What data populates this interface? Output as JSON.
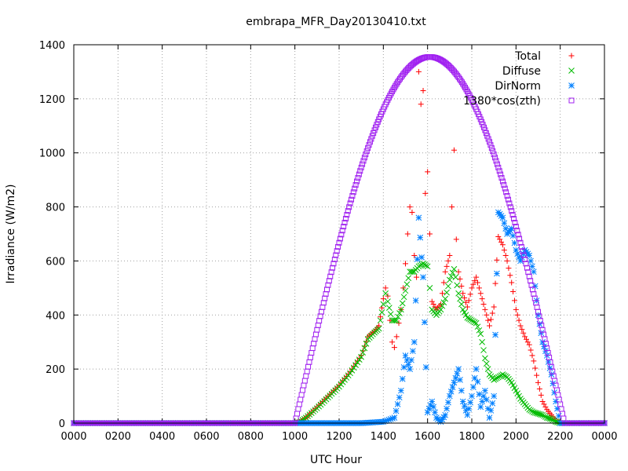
{
  "chart_data": {
    "type": "scatter",
    "title": "embrapa_MFR_Day20130410.txt",
    "xlabel": "UTC Hour",
    "ylabel": "Irradiance (W/m2)",
    "xlim": [
      0,
      2400
    ],
    "ylim": [
      0,
      1400
    ],
    "x_tick_labels": [
      "0000",
      "0200",
      "0400",
      "0600",
      "0800",
      "1000",
      "1200",
      "1400",
      "1600",
      "1800",
      "2000",
      "2200",
      "0000"
    ],
    "y_tick_labels": [
      "0",
      "200",
      "400",
      "600",
      "800",
      "1000",
      "1200",
      "1400"
    ],
    "grid": true,
    "legend_position": "top-right",
    "series": [
      {
        "name": "Total",
        "color": "#ff0000",
        "marker": "plus",
        "points": [
          [
            0,
            0
          ],
          [
            200,
            0
          ],
          [
            400,
            0
          ],
          [
            600,
            0
          ],
          [
            800,
            0
          ],
          [
            1000,
            0
          ],
          [
            1020,
            5
          ],
          [
            1050,
            20
          ],
          [
            1100,
            60
          ],
          [
            1150,
            100
          ],
          [
            1200,
            140
          ],
          [
            1250,
            190
          ],
          [
            1300,
            250
          ],
          [
            1330,
            320
          ],
          [
            1360,
            340
          ],
          [
            1380,
            360
          ],
          [
            1400,
            460
          ],
          [
            1410,
            500
          ],
          [
            1420,
            470
          ],
          [
            1430,
            380
          ],
          [
            1440,
            300
          ],
          [
            1450,
            280
          ],
          [
            1460,
            320
          ],
          [
            1470,
            370
          ],
          [
            1480,
            420
          ],
          [
            1490,
            500
          ],
          [
            1500,
            590
          ],
          [
            1510,
            700
          ],
          [
            1520,
            800
          ],
          [
            1530,
            780
          ],
          [
            1540,
            620
          ],
          [
            1550,
            540
          ],
          [
            1560,
            1300
          ],
          [
            1570,
            1180
          ],
          [
            1580,
            1230
          ],
          [
            1590,
            850
          ],
          [
            1600,
            930
          ],
          [
            1610,
            700
          ],
          [
            1620,
            450
          ],
          [
            1640,
            420
          ],
          [
            1660,
            440
          ],
          [
            1680,
            560
          ],
          [
            1700,
            620
          ],
          [
            1710,
            800
          ],
          [
            1720,
            1010
          ],
          [
            1730,
            680
          ],
          [
            1740,
            560
          ],
          [
            1760,
            480
          ],
          [
            1780,
            430
          ],
          [
            1800,
            500
          ],
          [
            1820,
            540
          ],
          [
            1840,
            480
          ],
          [
            1860,
            420
          ],
          [
            1880,
            360
          ],
          [
            1900,
            430
          ],
          [
            1920,
            690
          ],
          [
            1940,
            660
          ],
          [
            1960,
            600
          ],
          [
            1980,
            520
          ],
          [
            2000,
            420
          ],
          [
            2020,
            360
          ],
          [
            2040,
            320
          ],
          [
            2060,
            290
          ],
          [
            2080,
            230
          ],
          [
            2100,
            150
          ],
          [
            2120,
            80
          ],
          [
            2140,
            50
          ],
          [
            2160,
            30
          ],
          [
            2180,
            10
          ],
          [
            2200,
            0
          ],
          [
            2300,
            0
          ],
          [
            2400,
            0
          ]
        ]
      },
      {
        "name": "Diffuse",
        "color": "#00bb00",
        "marker": "x",
        "points": [
          [
            0,
            0
          ],
          [
            200,
            0
          ],
          [
            400,
            0
          ],
          [
            600,
            0
          ],
          [
            800,
            0
          ],
          [
            1000,
            0
          ],
          [
            1020,
            3
          ],
          [
            1050,
            20
          ],
          [
            1100,
            55
          ],
          [
            1150,
            95
          ],
          [
            1200,
            135
          ],
          [
            1250,
            185
          ],
          [
            1300,
            245
          ],
          [
            1330,
            310
          ],
          [
            1360,
            335
          ],
          [
            1380,
            350
          ],
          [
            1400,
            440
          ],
          [
            1410,
            480
          ],
          [
            1420,
            450
          ],
          [
            1440,
            380
          ],
          [
            1460,
            380
          ],
          [
            1480,
            420
          ],
          [
            1500,
            490
          ],
          [
            1520,
            560
          ],
          [
            1540,
            560
          ],
          [
            1560,
            580
          ],
          [
            1580,
            590
          ],
          [
            1600,
            580
          ],
          [
            1610,
            500
          ],
          [
            1620,
            420
          ],
          [
            1640,
            400
          ],
          [
            1660,
            420
          ],
          [
            1680,
            460
          ],
          [
            1700,
            530
          ],
          [
            1720,
            570
          ],
          [
            1740,
            480
          ],
          [
            1760,
            420
          ],
          [
            1780,
            390
          ],
          [
            1800,
            380
          ],
          [
            1820,
            370
          ],
          [
            1840,
            330
          ],
          [
            1860,
            240
          ],
          [
            1880,
            180
          ],
          [
            1900,
            160
          ],
          [
            1920,
            170
          ],
          [
            1940,
            180
          ],
          [
            1960,
            170
          ],
          [
            1980,
            150
          ],
          [
            2000,
            120
          ],
          [
            2020,
            90
          ],
          [
            2040,
            70
          ],
          [
            2060,
            50
          ],
          [
            2080,
            40
          ],
          [
            2100,
            35
          ],
          [
            2120,
            30
          ],
          [
            2140,
            20
          ],
          [
            2160,
            15
          ],
          [
            2180,
            5
          ],
          [
            2200,
            0
          ],
          [
            2300,
            0
          ],
          [
            2400,
            0
          ]
        ]
      },
      {
        "name": "DirNorm",
        "color": "#0080ff",
        "marker": "star",
        "points": [
          [
            0,
            0
          ],
          [
            200,
            0
          ],
          [
            400,
            0
          ],
          [
            600,
            0
          ],
          [
            800,
            0
          ],
          [
            1000,
            0
          ],
          [
            1100,
            0
          ],
          [
            1200,
            0
          ],
          [
            1300,
            0
          ],
          [
            1400,
            5
          ],
          [
            1450,
            20
          ],
          [
            1480,
            120
          ],
          [
            1500,
            250
          ],
          [
            1520,
            200
          ],
          [
            1540,
            300
          ],
          [
            1560,
            760
          ],
          [
            1580,
            540
          ],
          [
            1600,
            40
          ],
          [
            1620,
            80
          ],
          [
            1640,
            20
          ],
          [
            1660,
            5
          ],
          [
            1680,
            30
          ],
          [
            1700,
            100
          ],
          [
            1720,
            150
          ],
          [
            1740,
            200
          ],
          [
            1760,
            80
          ],
          [
            1780,
            30
          ],
          [
            1800,
            100
          ],
          [
            1820,
            200
          ],
          [
            1840,
            60
          ],
          [
            1860,
            120
          ],
          [
            1880,
            20
          ],
          [
            1900,
            100
          ],
          [
            1920,
            780
          ],
          [
            1940,
            760
          ],
          [
            1960,
            700
          ],
          [
            1980,
            720
          ],
          [
            2000,
            640
          ],
          [
            2020,
            600
          ],
          [
            2040,
            640
          ],
          [
            2060,
            620
          ],
          [
            2080,
            560
          ],
          [
            2100,
            400
          ],
          [
            2120,
            300
          ],
          [
            2140,
            250
          ],
          [
            2160,
            180
          ],
          [
            2180,
            80
          ],
          [
            2200,
            0
          ],
          [
            2300,
            0
          ],
          [
            2400,
            0
          ]
        ]
      },
      {
        "name": "1380*cos(zth)",
        "color": "#a020f0",
        "marker": "square",
        "function": "curve",
        "rise": 1000,
        "set": 2220,
        "peak_x": 1610,
        "peak_y": 1355
      }
    ]
  }
}
